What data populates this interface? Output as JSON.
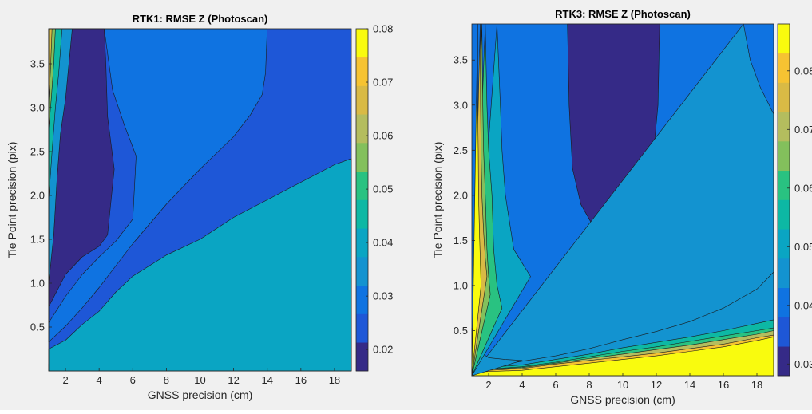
{
  "colors": {
    "figure_bg": "#f0f0f0",
    "axis": "#262626",
    "levels": [
      "#352a87",
      "#1e57d7",
      "#0f73e1",
      "#1393d0",
      "#0aa5c3",
      "#0db8a4",
      "#29c281",
      "#83c05c",
      "#b4bd5e",
      "#d9ba45",
      "#f6c332",
      "#f9fb0e"
    ]
  },
  "chart_data": [
    {
      "type": "contourf",
      "title": "RTK1: RMSE Z (Photoscan)",
      "xlabel": "GNSS precision (cm)",
      "ylabel": "Tie Point precision (pix)",
      "xlim": [
        1,
        19
      ],
      "ylim": [
        0,
        3.9
      ],
      "xticks": [
        2,
        4,
        6,
        8,
        10,
        12,
        14,
        16,
        18
      ],
      "yticks": [
        0.5,
        1.0,
        1.5,
        2.0,
        2.5,
        3.0,
        3.5
      ],
      "ytick_labels": [
        "0.5",
        "1.0",
        "1.5",
        "2.0",
        "2.5",
        "3.0",
        "3.5"
      ],
      "colorbar": {
        "range": [
          0.016,
          0.08
        ],
        "ticks": [
          0.02,
          0.03,
          0.04,
          0.05,
          0.06,
          0.07,
          0.08
        ],
        "tick_labels": [
          "0.02",
          "0.03",
          "0.04",
          "0.05",
          "0.06",
          "0.07",
          "0.08"
        ]
      },
      "regions": [
        {
          "rmse_z": 0.055,
          "color_index": 8,
          "boundary": [
            [
              1,
              0.02
            ],
            [
              3,
              0.08
            ],
            [
              6,
              0.16
            ],
            [
              8,
              0.2
            ],
            [
              10,
              0.24
            ],
            [
              12,
              0.28
            ],
            [
              14,
              0.31
            ],
            [
              16,
              0.33
            ],
            [
              18,
              0.37
            ],
            [
              19,
              0.38
            ]
          ]
        },
        {
          "rmse_z": 0.048,
          "color_index": 6,
          "boundary": [
            [
              1,
              0.08
            ],
            [
              2,
              0.13
            ],
            [
              3,
              0.18
            ],
            [
              4,
              0.26
            ],
            [
              5,
              0.32
            ],
            [
              6,
              0.37
            ],
            [
              8,
              0.43
            ],
            [
              10,
              0.51
            ],
            [
              12,
              0.58
            ],
            [
              14,
              0.67
            ],
            [
              16,
              0.77
            ],
            [
              18,
              0.94
            ],
            [
              19,
              1.05
            ]
          ]
        },
        {
          "rmse_z": 0.04,
          "color_index": 4,
          "boundary": [
            [
              1,
              0.25
            ],
            [
              2,
              0.35
            ],
            [
              3,
              0.53
            ],
            [
              4,
              0.68
            ],
            [
              5,
              0.9
            ],
            [
              6,
              1.08
            ],
            [
              8,
              1.32
            ],
            [
              10,
              1.5
            ],
            [
              12,
              1.75
            ],
            [
              14,
              1.95
            ],
            [
              16,
              2.15
            ],
            [
              18,
              2.35
            ],
            [
              19,
              2.42
            ]
          ]
        },
        {
          "rmse_z": 0.033,
          "color_index": 2,
          "boundary": [
            [
              1,
              0.33
            ],
            [
              2,
              0.51
            ],
            [
              3,
              0.72
            ],
            [
              4,
              0.95
            ],
            [
              5,
              1.2
            ],
            [
              6,
              1.45
            ],
            [
              8,
              1.9
            ],
            [
              10,
              2.3
            ],
            [
              12,
              2.67
            ],
            [
              13,
              2.92
            ],
            [
              13.7,
              3.15
            ],
            [
              13.9,
              3.4
            ],
            [
              14,
              3.9
            ]
          ]
        },
        {
          "rmse_z": 0.025,
          "color_index": 1,
          "boundary": [
            [
              1,
              0.55
            ],
            [
              2,
              0.85
            ],
            [
              3,
              1.1
            ],
            [
              4,
              1.3
            ],
            [
              5,
              1.48
            ],
            [
              6,
              1.73
            ],
            [
              6.2,
              2.45
            ],
            [
              5.5,
              2.8
            ],
            [
              4.8,
              3.2
            ],
            [
              4.3,
              3.9
            ]
          ]
        },
        {
          "rmse_z": 0.018,
          "color_index": 0,
          "boundary": [
            [
              1.05,
              0.75
            ],
            [
              2,
              1.1
            ],
            [
              3,
              1.3
            ],
            [
              4,
              1.42
            ],
            [
              4.5,
              1.55
            ],
            [
              4.9,
              2.3
            ],
            [
              4.5,
              2.9
            ],
            [
              4.4,
              3.5
            ],
            [
              4.3,
              3.9
            ]
          ]
        },
        {
          "rmse_z": 0.036,
          "color_index": 3,
          "boundary": [
            [
              1,
              1.0
            ],
            [
              1.3,
              1.55
            ],
            [
              1.5,
              2.2
            ],
            [
              1.7,
              2.7
            ],
            [
              2.0,
              3.1
            ],
            [
              2.4,
              3.9
            ]
          ]
        },
        {
          "rmse_z": 0.045,
          "color_index": 5,
          "boundary": [
            [
              1,
              1.95
            ],
            [
              1.2,
              2.5
            ],
            [
              1.4,
              3.0
            ],
            [
              1.6,
              3.4
            ],
            [
              1.8,
              3.9
            ]
          ]
        },
        {
          "rmse_z": 0.053,
          "color_index": 7,
          "boundary": [
            [
              1,
              2.75
            ],
            [
              1.15,
              3.1
            ],
            [
              1.3,
              3.5
            ],
            [
              1.4,
              3.9
            ]
          ]
        },
        {
          "rmse_z": 0.068,
          "color_index": 9,
          "boundary": [
            [
              1,
              3.05
            ],
            [
              1.1,
              3.4
            ],
            [
              1.2,
              3.9
            ]
          ]
        }
      ]
    },
    {
      "type": "contourf",
      "title": "RTK3: RMSE Z (Photoscan)",
      "xlabel": "GNSS precision (cm)",
      "ylabel": "Tie Point precision (pix)",
      "xlim": [
        1,
        19
      ],
      "ylim": [
        0,
        3.9
      ],
      "xticks": [
        2,
        4,
        6,
        8,
        10,
        12,
        14,
        16,
        18
      ],
      "yticks": [
        0.5,
        1.0,
        1.5,
        2.0,
        2.5,
        3.0,
        3.5
      ],
      "ytick_labels": [
        "0.5",
        "1.0",
        "1.5",
        "2.0",
        "2.5",
        "3.0",
        "3.5"
      ],
      "colorbar": {
        "range": [
          0.028,
          0.088
        ],
        "ticks": [
          0.03,
          0.04,
          0.05,
          0.06,
          0.07,
          0.08
        ],
        "tick_labels": [
          "0.03",
          "0.04",
          "0.05",
          "0.06",
          "0.07",
          "0.08"
        ]
      },
      "regions": [
        {
          "rmse_z": 0.03,
          "color_index": 0,
          "boundary": [
            [
              6.7,
              3.9
            ],
            [
              6.8,
              3.0
            ],
            [
              7.0,
              2.3
            ],
            [
              7.5,
              1.9
            ],
            [
              8.2,
              1.67
            ],
            [
              9.0,
              1.64
            ],
            [
              9.8,
              1.7
            ],
            [
              10.8,
              1.9
            ],
            [
              11.8,
              2.4
            ],
            [
              12.1,
              3.0
            ],
            [
              12.2,
              3.9
            ]
          ]
        },
        {
          "rmse_z": 0.042,
          "color_index": 3,
          "boundary": [
            [
              17.2,
              3.9
            ],
            [
              17.6,
              3.5
            ],
            [
              18.2,
              3.2
            ],
            [
              19,
              2.9
            ]
          ]
        },
        {
          "rmse_z": 0.046,
          "color_index": 3,
          "boundary": [
            [
              1,
              0.1
            ],
            [
              3,
              0.13
            ],
            [
              6,
              0.22
            ],
            [
              8,
              0.3
            ],
            [
              10,
              0.4
            ],
            [
              12,
              0.49
            ],
            [
              14,
              0.6
            ],
            [
              16,
              0.75
            ],
            [
              18,
              0.96
            ],
            [
              19,
              1.15
            ]
          ]
        },
        {
          "rmse_z": 0.052,
          "color_index": 5,
          "boundary": [
            [
              1,
              0.08
            ],
            [
              4,
              0.12
            ],
            [
              6,
              0.18
            ],
            [
              8,
              0.24
            ],
            [
              10,
              0.31
            ],
            [
              12,
              0.37
            ],
            [
              14,
              0.43
            ],
            [
              16,
              0.5
            ],
            [
              18,
              0.58
            ],
            [
              19,
              0.62
            ]
          ]
        },
        {
          "rmse_z": 0.06,
          "color_index": 6,
          "boundary": [
            [
              1,
              0.06
            ],
            [
              4,
              0.1
            ],
            [
              6,
              0.15
            ],
            [
              8,
              0.21
            ],
            [
              10,
              0.27
            ],
            [
              12,
              0.32
            ],
            [
              14,
              0.38
            ],
            [
              16,
              0.44
            ],
            [
              18,
              0.5
            ],
            [
              19,
              0.53
            ]
          ]
        },
        {
          "rmse_z": 0.065,
          "color_index": 8,
          "boundary": [
            [
              1,
              0.06
            ],
            [
              4,
              0.09
            ],
            [
              6,
              0.14
            ],
            [
              8,
              0.19
            ],
            [
              10,
              0.24
            ],
            [
              12,
              0.29
            ],
            [
              14,
              0.34
            ],
            [
              16,
              0.4
            ],
            [
              18,
              0.46
            ],
            [
              19,
              0.5
            ]
          ]
        },
        {
          "rmse_z": 0.075,
          "color_index": 10,
          "boundary": [
            [
              1,
              0.05
            ],
            [
              4,
              0.08
            ],
            [
              6,
              0.13
            ],
            [
              8,
              0.17
            ],
            [
              10,
              0.21
            ],
            [
              12,
              0.25
            ],
            [
              14,
              0.3
            ],
            [
              16,
              0.35
            ],
            [
              18,
              0.42
            ],
            [
              19,
              0.45
            ]
          ]
        },
        {
          "rmse_z": 0.088,
          "color_index": 11,
          "boundary": [
            [
              1,
              0.04
            ],
            [
              4,
              0.06
            ],
            [
              6,
              0.1
            ],
            [
              8,
              0.14
            ],
            [
              10,
              0.18
            ],
            [
              12,
              0.22
            ],
            [
              14,
              0.27
            ],
            [
              16,
              0.32
            ],
            [
              18,
              0.39
            ],
            [
              19,
              0.43
            ]
          ]
        },
        {
          "rmse_z": 0.044,
          "color_index": 3,
          "boundary": [
            [
              1,
              0.53
            ],
            [
              1.3,
              0.35
            ],
            [
              1.6,
              0.25
            ],
            [
              2.0,
              0.2
            ],
            [
              3.0,
              0.18
            ],
            [
              4.0,
              0.17
            ]
          ]
        },
        {
          "rmse_z": 0.048,
          "color_index": 4,
          "boundary": [
            [
              2.5,
              3.9
            ],
            [
              2.7,
              3.0
            ],
            [
              2.8,
              2.5
            ],
            [
              3.0,
              2.0
            ],
            [
              3.5,
              1.4
            ],
            [
              4.0,
              1.25
            ],
            [
              4.5,
              1.1
            ]
          ]
        },
        {
          "rmse_z": 0.056,
          "color_index": 6,
          "boundary": [
            [
              1.8,
              3.9
            ],
            [
              1.9,
              3.0
            ],
            [
              2.0,
              2.5
            ],
            [
              2.2,
              2.0
            ],
            [
              2.3,
              1.4
            ],
            [
              2.5,
              1.0
            ],
            [
              2.8,
              0.75
            ]
          ]
        },
        {
          "rmse_z": 0.064,
          "color_index": 7,
          "boundary": [
            [
              1.6,
              3.9
            ],
            [
              1.65,
              3.0
            ],
            [
              1.7,
              2.5
            ],
            [
              1.8,
              2.0
            ],
            [
              1.9,
              1.4
            ],
            [
              2.0,
              1.1
            ],
            [
              2.1,
              0.9
            ]
          ]
        },
        {
          "rmse_z": 0.07,
          "color_index": 9,
          "boundary": [
            [
              1.5,
              3.9
            ],
            [
              1.52,
              3.0
            ],
            [
              1.55,
              2.5
            ],
            [
              1.6,
              2.0
            ],
            [
              1.7,
              1.6
            ],
            [
              1.8,
              1.3
            ],
            [
              1.9,
              1.1
            ]
          ]
        },
        {
          "rmse_z": 0.085,
          "color_index": 11,
          "boundary": [
            [
              1.35,
              3.9
            ],
            [
              1.35,
              3.0
            ],
            [
              1.38,
              2.5
            ],
            [
              1.4,
              2.0
            ],
            [
              1.45,
              1.6
            ],
            [
              1.5,
              1.3
            ],
            [
              1.55,
              1.0
            ]
          ]
        }
      ]
    }
  ]
}
